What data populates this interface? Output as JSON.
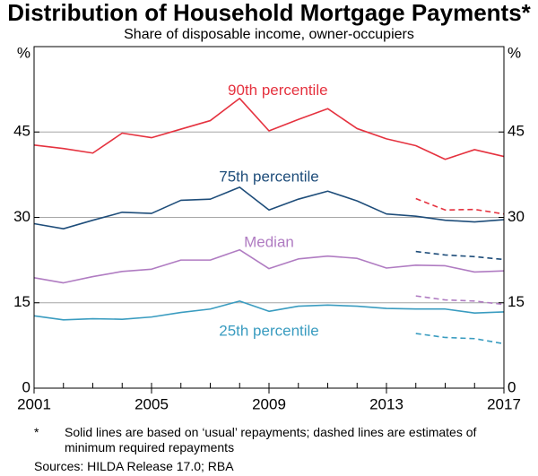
{
  "chart_data": {
    "type": "line",
    "title": "Distribution of Household Mortgage Payments*",
    "subtitle": "Share of disposable income, owner-occupiers",
    "yunit_left": "%",
    "yunit_right": "%",
    "xlim": [
      2001,
      2017
    ],
    "ylim": [
      0,
      60
    ],
    "xticks": [
      2001,
      2005,
      2009,
      2013,
      2017
    ],
    "yticks": [
      0,
      15,
      30,
      45
    ],
    "gridlines": [
      15,
      30,
      45
    ],
    "x": [
      2001,
      2002,
      2003,
      2004,
      2005,
      2006,
      2007,
      2008,
      2009,
      2010,
      2011,
      2012,
      2013,
      2014,
      2015,
      2016,
      2017
    ],
    "series": [
      {
        "name": "90th percentile",
        "color": "#e5323f",
        "label_x": 2009.3,
        "label_y": 52.2,
        "values": [
          42.7,
          42.1,
          41.3,
          44.8,
          44.0,
          45.5,
          47.0,
          50.9,
          45.2,
          47.2,
          49.1,
          45.6,
          43.8,
          42.6,
          40.2,
          41.9,
          40.7
        ],
        "dashed": {
          "x": [
            2014,
            2015,
            2016,
            2017
          ],
          "values": [
            33.3,
            31.3,
            31.4,
            30.6
          ]
        }
      },
      {
        "name": "75th percentile",
        "color": "#1e4d7a",
        "label_x": 2009.0,
        "label_y": 37.0,
        "values": [
          28.9,
          28.0,
          29.5,
          30.9,
          30.7,
          33.0,
          33.2,
          35.3,
          31.3,
          33.2,
          34.6,
          32.9,
          30.6,
          30.2,
          29.5,
          29.2,
          29.6
        ],
        "dashed": {
          "x": [
            2014,
            2015,
            2016,
            2017
          ],
          "values": [
            24.0,
            23.4,
            23.1,
            22.6
          ]
        }
      },
      {
        "name": "Median",
        "color": "#b07cc2",
        "label_x": 2009.0,
        "label_y": 25.5,
        "values": [
          19.4,
          18.5,
          19.6,
          20.5,
          20.9,
          22.5,
          22.5,
          24.3,
          21.0,
          22.7,
          23.2,
          22.8,
          21.1,
          21.6,
          21.5,
          20.4,
          20.6
        ],
        "dashed": {
          "x": [
            2014,
            2015,
            2016,
            2017
          ],
          "values": [
            16.2,
            15.5,
            15.3,
            14.7
          ]
        }
      },
      {
        "name": "25th percentile",
        "color": "#3a9cc0",
        "label_x": 2009.0,
        "label_y": 9.9,
        "values": [
          12.7,
          12.0,
          12.2,
          12.1,
          12.5,
          13.3,
          13.9,
          15.3,
          13.5,
          14.4,
          14.6,
          14.4,
          14.0,
          13.9,
          13.9,
          13.2,
          13.4
        ],
        "dashed": {
          "x": [
            2014,
            2015,
            2016,
            2017
          ],
          "values": [
            9.6,
            8.9,
            8.7,
            7.8
          ]
        }
      }
    ],
    "grid": true,
    "legend": "inline-labels"
  },
  "footnote": {
    "marker": "*",
    "text": "Solid lines are based on ‘usual’ repayments; dashed lines are estimates of minimum required repayments"
  },
  "sources": "Sources: HILDA Release 17.0; RBA",
  "colors": {
    "axis": "#000000",
    "grid": "#a6a6a6"
  }
}
